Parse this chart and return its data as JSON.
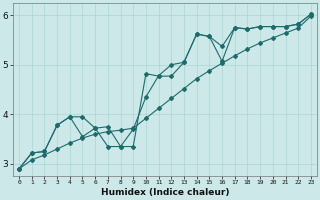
{
  "xlabel": "Humidex (Indice chaleur)",
  "bg_color": "#cce8e8",
  "line_color": "#1e6b6b",
  "grid_color": "#aad4d4",
  "xlim": [
    -0.5,
    23.5
  ],
  "ylim": [
    2.75,
    6.25
  ],
  "xtick_labels": [
    "0",
    "1",
    "2",
    "3",
    "4",
    "5",
    "6",
    "7",
    "8",
    "9",
    "10",
    "11",
    "12",
    "13",
    "14",
    "15",
    "16",
    "17",
    "18",
    "19",
    "20",
    "21",
    "22",
    "23"
  ],
  "xtick_vals": [
    0,
    1,
    2,
    3,
    4,
    5,
    6,
    7,
    8,
    9,
    10,
    11,
    12,
    13,
    14,
    15,
    16,
    17,
    18,
    19,
    20,
    21,
    22,
    23
  ],
  "yticks": [
    3,
    4,
    5,
    6
  ],
  "series1_x": [
    0,
    1,
    2,
    3,
    4,
    5,
    6,
    7,
    8,
    9,
    10,
    11,
    12,
    13,
    14,
    15,
    16,
    17,
    18,
    19,
    20,
    21,
    22,
    23
  ],
  "series1_y": [
    2.9,
    3.22,
    3.25,
    3.78,
    3.95,
    3.55,
    3.72,
    3.75,
    3.35,
    3.7,
    4.35,
    4.78,
    5.0,
    5.05,
    5.62,
    5.57,
    5.07,
    5.75,
    5.72,
    5.77,
    5.77,
    5.77,
    5.82,
    6.02
  ],
  "series2_x": [
    0,
    1,
    2,
    3,
    4,
    5,
    6,
    7,
    8,
    9,
    10,
    11,
    12,
    13,
    14,
    15,
    16,
    17,
    18,
    19,
    20,
    21,
    22,
    23
  ],
  "series2_y": [
    2.9,
    3.22,
    3.25,
    3.78,
    3.95,
    3.95,
    3.72,
    3.35,
    3.35,
    3.35,
    4.82,
    4.77,
    4.77,
    5.05,
    5.62,
    5.57,
    5.37,
    5.75,
    5.72,
    5.77,
    5.77,
    5.77,
    5.82,
    6.02
  ],
  "series3_x": [
    0,
    1,
    2,
    3,
    4,
    5,
    6,
    7,
    8,
    9,
    10,
    11,
    12,
    13,
    14,
    15,
    16,
    17,
    18,
    19,
    20,
    21,
    22,
    23
  ],
  "series3_y": [
    2.9,
    3.08,
    3.18,
    3.3,
    3.42,
    3.52,
    3.6,
    3.65,
    3.68,
    3.72,
    3.92,
    4.12,
    4.32,
    4.52,
    4.72,
    4.88,
    5.03,
    5.18,
    5.32,
    5.44,
    5.54,
    5.64,
    5.74,
    5.98
  ]
}
